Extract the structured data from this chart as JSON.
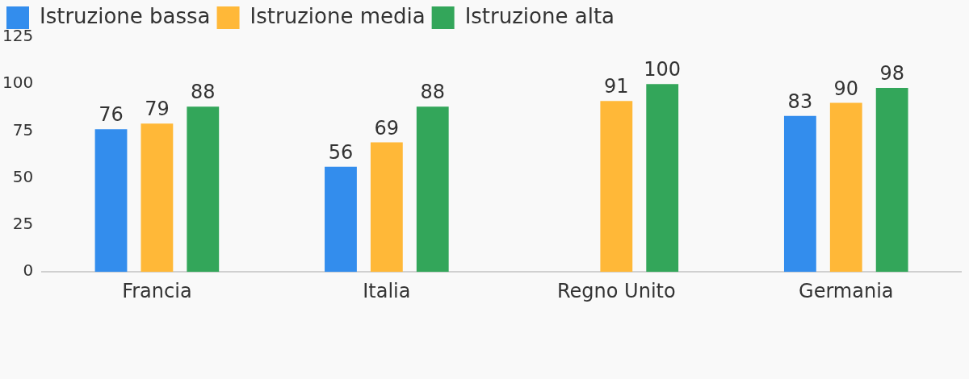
{
  "chart_data": {
    "type": "bar",
    "categories": [
      "Francia",
      "Italia",
      "Regno Unito",
      "Germania"
    ],
    "series": [
      {
        "name": "Istruzione bassa",
        "color": "#338ded",
        "values": [
          76,
          56,
          null,
          83
        ]
      },
      {
        "name": "Istruzione media",
        "color": "#ffb838",
        "values": [
          79,
          69,
          91,
          90
        ]
      },
      {
        "name": "Istruzione alta",
        "color": "#33a65a",
        "values": [
          88,
          88,
          100,
          98
        ]
      }
    ],
    "ylim": [
      0,
      125
    ],
    "yticks": [
      0,
      25,
      50,
      75,
      100,
      125
    ],
    "grid": false,
    "legend": "top left",
    "data_labels": true
  }
}
